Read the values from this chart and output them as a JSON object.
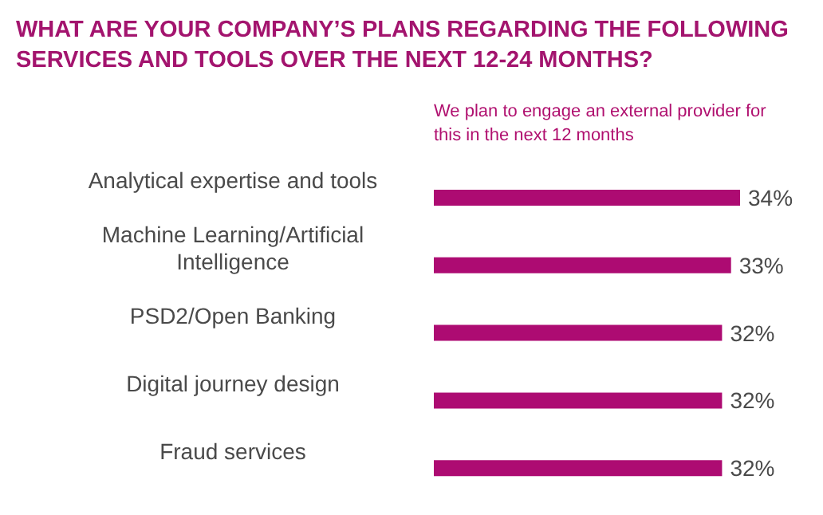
{
  "chart_data": {
    "type": "bar",
    "orientation": "horizontal",
    "title": "WHAT ARE YOUR COMPANY’S PLANS REGARDING THE FOLLOWING SERVICES AND TOOLS OVER THE NEXT 12-24 MONTHS?",
    "subtitle": "We plan to engage an external provider for this in the next 12 months",
    "categories": [
      "Analytical expertise and tools",
      "Machine Learning/Artificial Intelligence",
      "PSD2/Open Banking",
      "Digital journey design",
      "Fraud services"
    ],
    "values": [
      34,
      33,
      32,
      32,
      32
    ],
    "color": "#ad0b72",
    "value_labels": [
      "34%",
      "33%",
      "32%",
      "32%",
      "32%"
    ]
  }
}
